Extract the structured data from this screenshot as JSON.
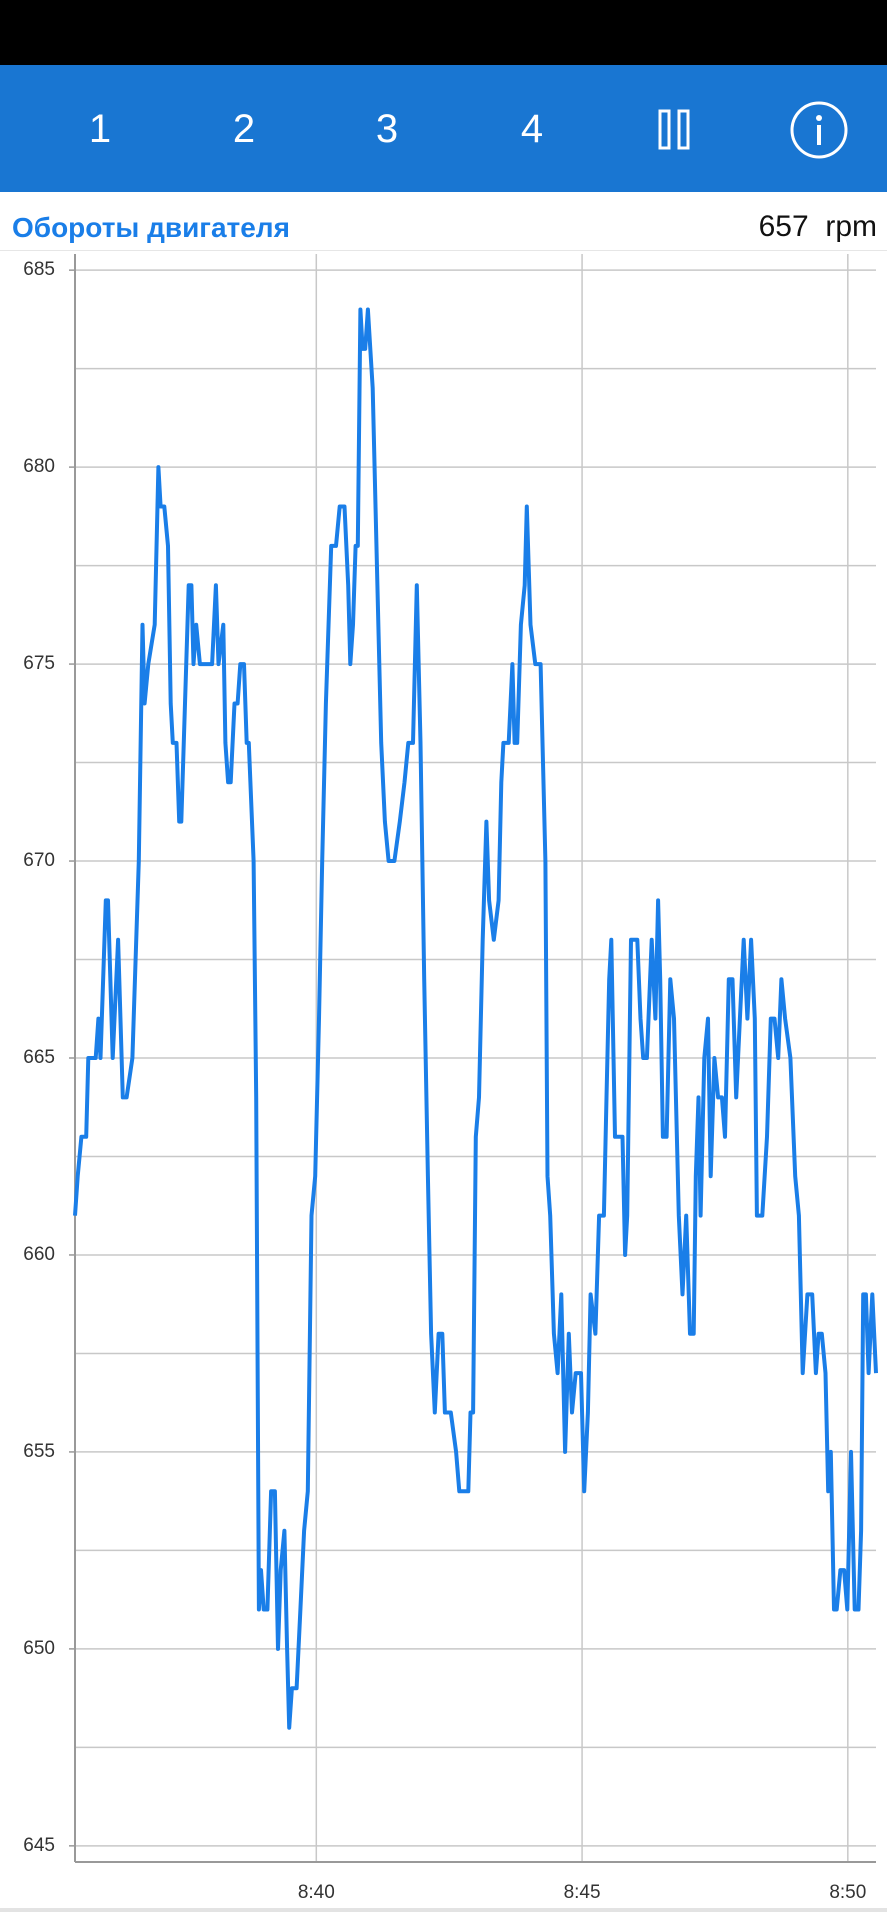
{
  "toolbar": {
    "tabs": [
      "1",
      "2",
      "3",
      "4"
    ]
  },
  "header": {
    "title": "Обороты двигателя",
    "current_value": 657,
    "unit": "rpm"
  },
  "chart_data": {
    "type": "line",
    "color": "#1a7ee8",
    "grid": true,
    "xlim": [
      35.46,
      50.53
    ],
    "xticks": [
      {
        "value": 40,
        "label": "8:40"
      },
      {
        "value": 45,
        "label": "8:45"
      },
      {
        "value": 50,
        "label": "8:50"
      }
    ],
    "ylim": [
      644.59,
      685.41
    ],
    "yticks": [
      645,
      650,
      655,
      660,
      665,
      670,
      675,
      680,
      685
    ],
    "y_minor_ticks": [
      647.5,
      652.5,
      657.5,
      662.5,
      667.5,
      672.5,
      677.5,
      682.5
    ],
    "x": [
      35.46,
      35.51,
      35.58,
      35.67,
      35.71,
      35.85,
      35.9,
      35.94,
      36.04,
      36.08,
      36.17,
      36.27,
      36.36,
      36.43,
      36.54,
      36.66,
      36.73,
      36.77,
      36.84,
      36.96,
      37.03,
      37.07,
      37.14,
      37.21,
      37.26,
      37.3,
      37.37,
      37.42,
      37.46,
      37.53,
      37.6,
      37.65,
      37.69,
      37.74,
      37.81,
      37.97,
      38.04,
      38.11,
      38.16,
      38.25,
      38.29,
      38.34,
      38.39,
      38.46,
      38.52,
      38.57,
      38.64,
      38.69,
      38.73,
      38.82,
      38.87,
      38.92,
      38.96,
      39.01,
      39.08,
      39.15,
      39.22,
      39.28,
      39.33,
      39.4,
      39.45,
      39.49,
      39.54,
      39.63,
      39.7,
      39.77,
      39.84,
      39.91,
      39.98,
      40.05,
      40.11,
      40.18,
      40.28,
      40.37,
      40.44,
      40.53,
      40.6,
      40.64,
      40.69,
      40.74,
      40.78,
      40.83,
      40.87,
      40.92,
      40.97,
      41.06,
      41.15,
      41.22,
      41.29,
      41.36,
      41.47,
      41.57,
      41.66,
      41.73,
      41.82,
      41.89,
      41.96,
      42.03,
      42.1,
      42.16,
      42.23,
      42.3,
      42.37,
      42.42,
      42.53,
      42.63,
      42.69,
      42.79,
      42.86,
      42.9,
      42.95,
      43.0,
      43.06,
      43.13,
      43.2,
      43.25,
      43.34,
      43.43,
      43.48,
      43.52,
      43.62,
      43.69,
      43.73,
      43.78,
      43.85,
      43.92,
      43.96,
      44.03,
      44.12,
      44.22,
      44.31,
      44.35,
      44.4,
      44.47,
      44.54,
      44.61,
      44.68,
      44.75,
      44.81,
      44.88,
      44.98,
      45.04,
      45.11,
      45.16,
      45.25,
      45.32,
      45.41,
      45.46,
      45.51,
      45.55,
      45.62,
      45.69,
      45.76,
      45.81,
      45.85,
      45.92,
      46.04,
      46.1,
      46.15,
      46.22,
      46.31,
      46.38,
      46.43,
      46.47,
      46.52,
      46.59,
      46.66,
      46.73,
      46.82,
      46.89,
      46.96,
      47.03,
      47.1,
      47.14,
      47.19,
      47.23,
      47.3,
      47.37,
      47.42,
      47.49,
      47.56,
      47.63,
      47.69,
      47.76,
      47.83,
      47.9,
      47.97,
      48.04,
      48.11,
      48.18,
      48.25,
      48.29,
      48.39,
      48.48,
      48.55,
      48.62,
      48.69,
      48.75,
      48.82,
      48.92,
      49.01,
      49.08,
      49.15,
      49.24,
      49.33,
      49.4,
      49.45,
      49.51,
      49.58,
      49.63,
      49.68,
      49.74,
      49.79,
      49.86,
      49.93,
      49.99,
      50.06,
      50.13,
      50.2,
      50.25,
      50.29,
      50.34,
      50.39,
      50.46,
      50.53
    ],
    "values": [
      661,
      662,
      663,
      663,
      665,
      665,
      666,
      665,
      669,
      669,
      665,
      668,
      664,
      664,
      665,
      670,
      676,
      674,
      675,
      676,
      680,
      679,
      679,
      678,
      674,
      673,
      673,
      671,
      671,
      674,
      677,
      677,
      675,
      676,
      675,
      675,
      675,
      677,
      675,
      676,
      673,
      672,
      672,
      674,
      674,
      675,
      675,
      673,
      673,
      670,
      664,
      651,
      652,
      651,
      651,
      654,
      654,
      650,
      652,
      653,
      650,
      648,
      649,
      649,
      651,
      653,
      654,
      661,
      662,
      666,
      670,
      674,
      678,
      678,
      679,
      679,
      677,
      675,
      676,
      678,
      678,
      684,
      683,
      683,
      684,
      682,
      677,
      673,
      671,
      670,
      670,
      671,
      672,
      673,
      673,
      677,
      673,
      667,
      662,
      658,
      656,
      658,
      658,
      656,
      656,
      655,
      654,
      654,
      654,
      656,
      656,
      663,
      664,
      668,
      671,
      669,
      668,
      669,
      672,
      673,
      673,
      675,
      673,
      673,
      676,
      677,
      679,
      676,
      675,
      675,
      670,
      662,
      661,
      658,
      657,
      659,
      655,
      658,
      656,
      657,
      657,
      654,
      656,
      659,
      658,
      661,
      661,
      664,
      667,
      668,
      663,
      663,
      663,
      660,
      661,
      668,
      668,
      666,
      665,
      665,
      668,
      666,
      669,
      667,
      663,
      663,
      667,
      666,
      661,
      659,
      661,
      658,
      658,
      662,
      664,
      661,
      665,
      666,
      662,
      665,
      664,
      664,
      663,
      667,
      667,
      664,
      666,
      668,
      666,
      668,
      666,
      661,
      661,
      663,
      666,
      666,
      665,
      667,
      666,
      665,
      662,
      661,
      657,
      659,
      659,
      657,
      658,
      658,
      657,
      654,
      655,
      651,
      651,
      652,
      652,
      651,
      655,
      651,
      651,
      653,
      659,
      659,
      657,
      659,
      657
    ]
  }
}
